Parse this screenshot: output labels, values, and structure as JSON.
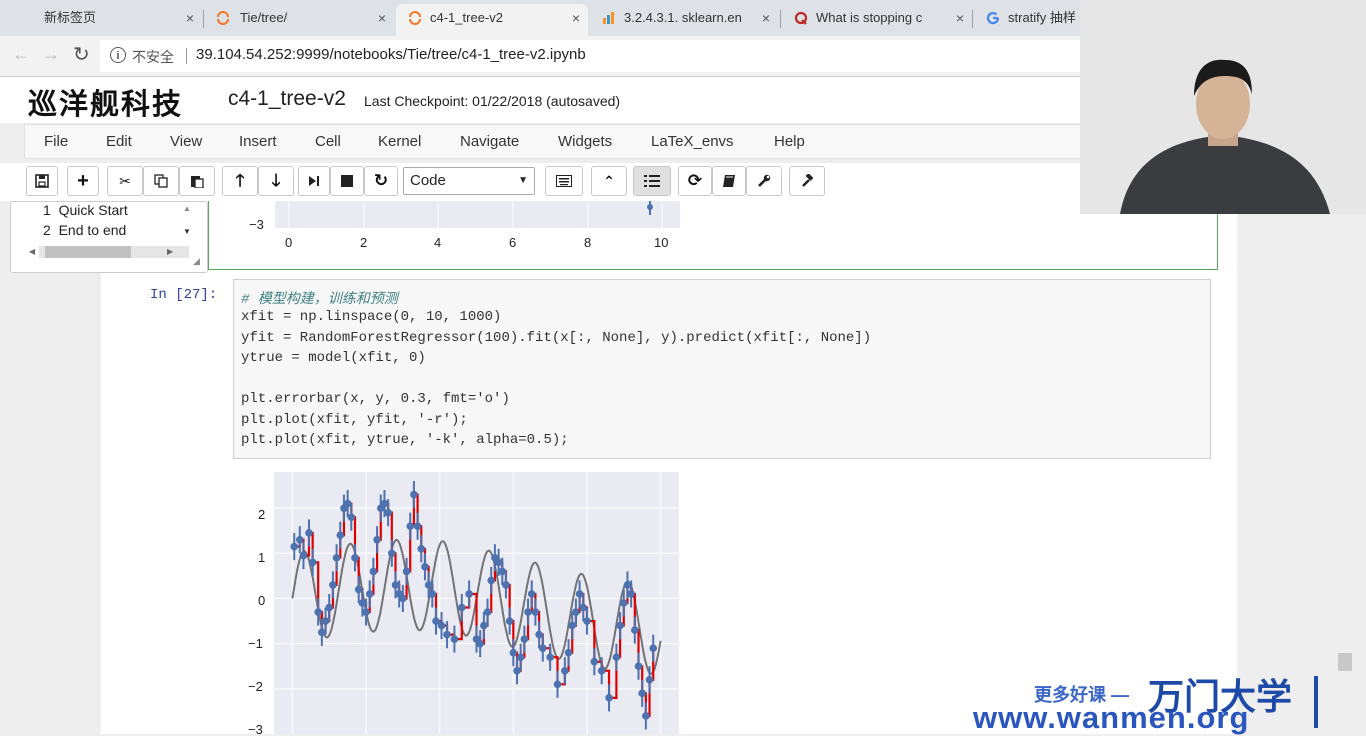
{
  "browser": {
    "tabs": [
      {
        "title": "新标签页",
        "active": false
      },
      {
        "title": "Tie/tree/",
        "active": false
      },
      {
        "title": "c4-1_tree-v2",
        "active": true
      },
      {
        "title": "3.2.4.3.1. sklearn.en",
        "active": false
      },
      {
        "title": "What is stopping c",
        "active": false
      },
      {
        "title": "stratify 抽样",
        "active": false
      }
    ],
    "close_glyph": "×",
    "security_label": "不安全",
    "url": "39.104.54.252:9999/notebooks/Tie/tree/c4-1_tree-v2.ipynb",
    "nav": {
      "back": "←",
      "forward": "→",
      "reload": "↻",
      "info": "i"
    }
  },
  "header": {
    "logo": "巡洋舰科技",
    "notebook_name": "c4-1_tree-v2",
    "checkpoint": "Last Checkpoint: 01/22/2018 (autosaved)"
  },
  "menu": [
    "File",
    "Edit",
    "View",
    "Insert",
    "Cell",
    "Kernel",
    "Navigate",
    "Widgets",
    "LaTeX_envs",
    "Help"
  ],
  "toolbar": {
    "cell_type": "Code",
    "buttons": [
      "save-icon",
      "plus-icon",
      "scissors-icon",
      "copy-icon",
      "paste-icon",
      "arrow-up-icon",
      "arrow-down-icon",
      "step-forward-icon",
      "stop-icon",
      "restart-icon",
      "keyboard-icon",
      "chevron-up-icon",
      "list-icon",
      "refresh-icon",
      "book-icon",
      "wrench-icon",
      "hammer-icon"
    ]
  },
  "toc": {
    "items": [
      {
        "num": "1",
        "label": "Quick Start"
      },
      {
        "num": "2",
        "label": "End to end"
      }
    ]
  },
  "prev_output": {
    "y_tick": "−3",
    "x_ticks": [
      "0",
      "2",
      "4",
      "6",
      "8",
      "10"
    ]
  },
  "cell": {
    "prompt": "In  [27]:",
    "lines": [
      "# 模型构建，训练和预测",
      "xfit = np.linspace(0, 10, 1000)",
      "yfit = RandomForestRegressor(100).fit(x[:, None], y).predict(xfit[:, None])",
      "ytrue = model(xfit, 0)",
      "",
      "plt.errorbar(x, y, 0.3, fmt='o')",
      "plt.plot(xfit, yfit, '-r');",
      "plt.plot(xfit, ytrue, '-k', alpha=0.5);"
    ]
  },
  "chart_data": {
    "type": "line",
    "ylim": [
      -3,
      2.8
    ],
    "xlim": [
      -0.5,
      10.5
    ],
    "y_ticks": [
      "2",
      "1",
      "0",
      "−1",
      "−2",
      "−3"
    ],
    "grid": true,
    "series": [
      {
        "color": "#555555",
        "style": "ytrue"
      },
      {
        "color": "#e00000",
        "style": "yfit"
      },
      {
        "color": "#4c72b0",
        "style": "errorbar points"
      }
    ],
    "points": [
      [
        0.05,
        1.15
      ],
      [
        0.2,
        1.3
      ],
      [
        0.3,
        0.95
      ],
      [
        0.45,
        1.45
      ],
      [
        0.55,
        0.8
      ],
      [
        0.7,
        -0.3
      ],
      [
        0.8,
        -0.75
      ],
      [
        0.9,
        -0.5
      ],
      [
        1.0,
        -0.2
      ],
      [
        1.1,
        0.3
      ],
      [
        1.2,
        0.9
      ],
      [
        1.3,
        1.4
      ],
      [
        1.4,
        2.0
      ],
      [
        1.5,
        2.1
      ],
      [
        1.6,
        1.8
      ],
      [
        1.7,
        0.9
      ],
      [
        1.8,
        0.2
      ],
      [
        1.9,
        -0.1
      ],
      [
        2.0,
        -0.3
      ],
      [
        2.1,
        0.1
      ],
      [
        2.2,
        0.6
      ],
      [
        2.3,
        1.3
      ],
      [
        2.4,
        2.0
      ],
      [
        2.5,
        2.1
      ],
      [
        2.6,
        1.9
      ],
      [
        2.7,
        1.0
      ],
      [
        2.8,
        0.3
      ],
      [
        2.9,
        0.1
      ],
      [
        3.0,
        0.0
      ],
      [
        3.1,
        0.6
      ],
      [
        3.2,
        1.6
      ],
      [
        3.3,
        2.3
      ],
      [
        3.4,
        1.6
      ],
      [
        3.5,
        1.1
      ],
      [
        3.6,
        0.7
      ],
      [
        3.7,
        0.3
      ],
      [
        3.8,
        0.1
      ],
      [
        3.9,
        -0.5
      ],
      [
        4.05,
        -0.6
      ],
      [
        4.2,
        -0.8
      ],
      [
        4.4,
        -0.9
      ],
      [
        4.6,
        -0.2
      ],
      [
        4.8,
        0.1
      ],
      [
        5.0,
        -0.9
      ],
      [
        5.1,
        -1.0
      ],
      [
        5.2,
        -0.6
      ],
      [
        5.3,
        -0.3
      ],
      [
        5.4,
        0.4
      ],
      [
        5.5,
        0.9
      ],
      [
        5.6,
        0.8
      ],
      [
        5.7,
        0.6
      ],
      [
        5.8,
        0.3
      ],
      [
        5.9,
        -0.5
      ],
      [
        6.0,
        -1.2
      ],
      [
        6.1,
        -1.6
      ],
      [
        6.2,
        -1.3
      ],
      [
        6.3,
        -0.9
      ],
      [
        6.4,
        -0.3
      ],
      [
        6.5,
        0.1
      ],
      [
        6.6,
        -0.3
      ],
      [
        6.7,
        -0.8
      ],
      [
        6.8,
        -1.1
      ],
      [
        7.0,
        -1.3
      ],
      [
        7.2,
        -1.9
      ],
      [
        7.4,
        -1.6
      ],
      [
        7.5,
        -1.2
      ],
      [
        7.6,
        -0.6
      ],
      [
        7.7,
        -0.3
      ],
      [
        7.8,
        0.1
      ],
      [
        7.9,
        -0.2
      ],
      [
        8.0,
        -0.5
      ],
      [
        8.2,
        -1.4
      ],
      [
        8.4,
        -1.6
      ],
      [
        8.6,
        -2.2
      ],
      [
        8.8,
        -1.3
      ],
      [
        8.9,
        -0.6
      ],
      [
        9.0,
        -0.1
      ],
      [
        9.1,
        0.3
      ],
      [
        9.2,
        0.1
      ],
      [
        9.3,
        -0.7
      ],
      [
        9.4,
        -1.5
      ],
      [
        9.5,
        -2.1
      ],
      [
        9.6,
        -2.6
      ],
      [
        9.7,
        -1.8
      ],
      [
        9.8,
        -1.1
      ]
    ]
  },
  "watermark": {
    "tagline": "更多好课 —",
    "brand": "万门大学",
    "url": "www.wanmen.org"
  }
}
